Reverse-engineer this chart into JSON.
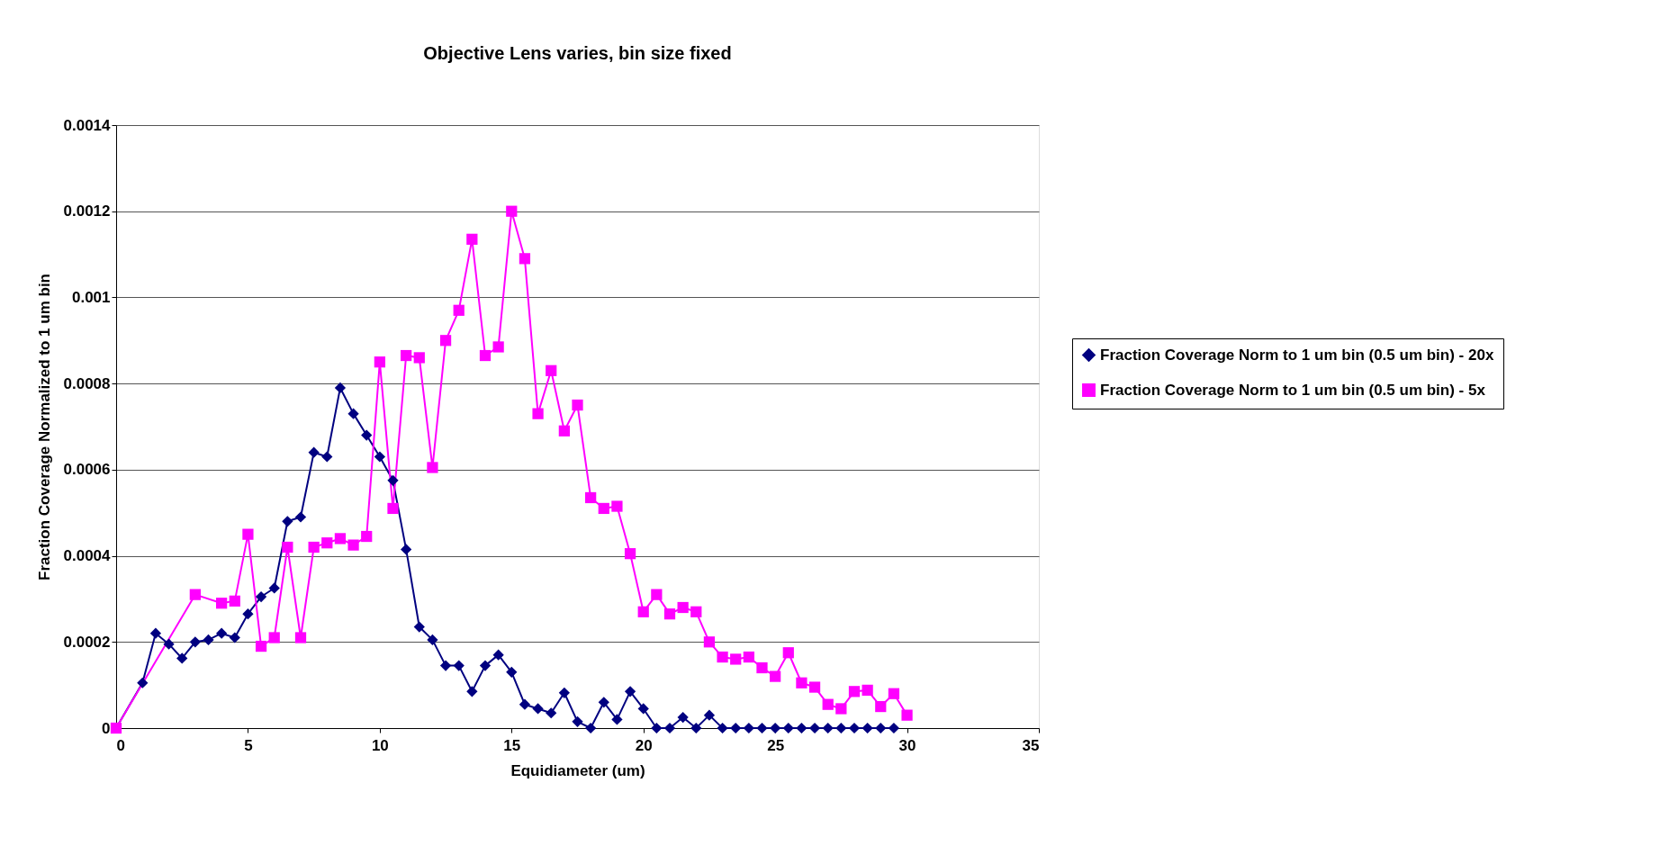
{
  "chart_data": {
    "type": "line",
    "title": "Objective Lens varies, bin size fixed",
    "xlabel": "Equidiameter (um)",
    "ylabel": "Fraction Coverage Normalized to 1 um bin",
    "xlim": [
      0,
      35
    ],
    "xticks": [
      0,
      5,
      10,
      15,
      20,
      25,
      30,
      35
    ],
    "ylim": [
      0,
      0.0014
    ],
    "yticks": [
      0,
      0.0002,
      0.0004,
      0.0006,
      0.0008,
      0.001,
      0.0012,
      0.0014
    ],
    "grid": "y",
    "legend": "right",
    "line_style": "solid",
    "series": [
      {
        "name": "Fraction Coverage Norm to 1 um bin (0.5 um bin) - 20x",
        "color": "#000080",
        "marker": "diamond",
        "x": [
          0,
          1,
          1.5,
          2,
          2.5,
          3,
          3.5,
          4,
          4.5,
          5,
          5.5,
          6,
          6.5,
          7,
          7.5,
          8,
          8.5,
          9,
          9.5,
          10,
          10.5,
          11,
          11.5,
          12,
          12.5,
          13,
          13.5,
          14,
          14.5,
          15,
          15.5,
          16,
          16.5,
          17,
          17.5,
          18,
          18.5,
          19,
          19.5,
          20,
          20.5,
          21,
          21.5,
          22,
          22.5,
          23,
          23.5,
          24,
          24.5,
          25,
          25.5,
          26,
          26.5,
          27,
          27.5,
          28,
          28.5,
          29,
          29.5
        ],
        "values": [
          0,
          0.000105,
          0.00022,
          0.000195,
          0.000162,
          0.0002,
          0.000205,
          0.00022,
          0.00021,
          0.000265,
          0.000305,
          0.000325,
          0.00048,
          0.00049,
          0.00064,
          0.00063,
          0.00079,
          0.00073,
          0.00068,
          0.00063,
          0.000575,
          0.000415,
          0.000235,
          0.000205,
          0.000145,
          0.000145,
          8.5e-05,
          0.000145,
          0.00017,
          0.00013,
          5.5e-05,
          4.5e-05,
          3.5e-05,
          8.2e-05,
          1.5e-05,
          0,
          6e-05,
          2e-05,
          8.5e-05,
          4.5e-05,
          0,
          0,
          2.5e-05,
          0,
          3e-05,
          0,
          0,
          0,
          0,
          0,
          0,
          0,
          0,
          0,
          0,
          0,
          0,
          0,
          0
        ]
      },
      {
        "name": "Fraction Coverage Norm to 1 um bin (0.5 um bin) - 5x",
        "color": "#ff00ff",
        "marker": "square",
        "x": [
          0,
          3,
          4,
          4.5,
          5,
          5.5,
          6,
          6.5,
          7,
          7.5,
          8,
          8.5,
          9,
          9.5,
          10,
          10.5,
          11,
          11.5,
          12,
          12.5,
          13,
          13.5,
          14,
          14.5,
          15,
          15.5,
          16,
          16.5,
          17,
          17.5,
          18,
          18.5,
          19,
          19.5,
          20,
          20.5,
          21,
          21.5,
          22,
          22.5,
          23,
          23.5,
          24,
          24.5,
          25,
          25.5,
          26,
          26.5,
          27,
          27.5,
          28,
          28.5,
          29,
          29.5,
          30
        ],
        "values": [
          0,
          0.00031,
          0.00029,
          0.000295,
          0.00045,
          0.00019,
          0.00021,
          0.00042,
          0.00021,
          0.00042,
          0.00043,
          0.00044,
          0.000425,
          0.000445,
          0.00085,
          0.00051,
          0.000865,
          0.00086,
          0.000605,
          0.0009,
          0.00097,
          0.001135,
          0.000865,
          0.000885,
          0.0012,
          0.00109,
          0.00073,
          0.00083,
          0.00069,
          0.00075,
          0.000535,
          0.00051,
          0.000515,
          0.000405,
          0.00027,
          0.00031,
          0.000265,
          0.00028,
          0.00027,
          0.0002,
          0.000165,
          0.00016,
          0.000165,
          0.00014,
          0.00012,
          0.000175,
          0.000105,
          9.5e-05,
          5.5e-05,
          4.5e-05,
          8.5e-05,
          8.8e-05,
          5e-05,
          8e-05,
          3e-05
        ]
      }
    ]
  }
}
